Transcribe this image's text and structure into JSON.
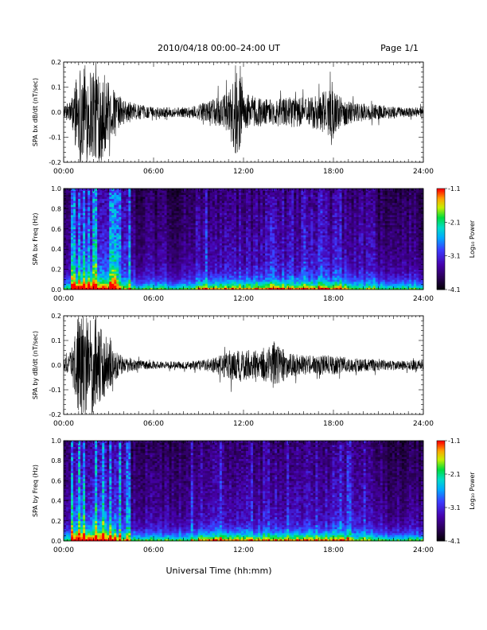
{
  "header": {
    "title": "2010/04/18   00:00–24:00 UT",
    "page": "Page 1/1"
  },
  "chart_data": [
    {
      "type": "line",
      "ylabel": "SPA bx dB/dt (nT/sec)",
      "x_range": [
        0,
        24
      ],
      "ylim": [
        -0.2,
        0.2
      ],
      "yticks": [
        "-0.2",
        "-0.1",
        "0.0",
        "0.1",
        "0.2"
      ],
      "xtick_labels": [
        "00:00",
        "06:00",
        "12:00",
        "18:00",
        "24:00"
      ],
      "envelope_x": [
        0,
        0.5,
        1.0,
        1.5,
        2.0,
        2.5,
        3.0,
        3.5,
        4.0,
        5.0,
        6.0,
        7.0,
        8.0,
        9.0,
        10.0,
        11.0,
        11.5,
        12.0,
        13.0,
        14.0,
        15.0,
        16.0,
        17.0,
        17.8,
        18.5,
        19.5,
        21.0,
        22.5,
        24.0
      ],
      "envelope_amp": [
        0.02,
        0.05,
        0.2,
        0.2,
        0.2,
        0.2,
        0.12,
        0.08,
        0.05,
        0.03,
        0.02,
        0.02,
        0.02,
        0.03,
        0.05,
        0.08,
        0.2,
        0.08,
        0.06,
        0.05,
        0.06,
        0.06,
        0.07,
        0.1,
        0.06,
        0.04,
        0.03,
        0.02,
        0.02
      ]
    },
    {
      "type": "heatmap",
      "ylabel": "SPA bx Freq (Hz)",
      "x_range": [
        0,
        24
      ],
      "ylim": [
        0,
        1.0
      ],
      "yticks": [
        "0.0",
        "0.2",
        "0.4",
        "0.6",
        "0.8",
        "1.0"
      ],
      "xtick_labels": [
        "00:00",
        "06:00",
        "12:00",
        "18:00",
        "24:00"
      ],
      "colorbar": {
        "label": "Log₁₀ Power",
        "ticks": [
          "-1.1",
          "-2.1",
          "-3.1",
          "-4.1"
        ],
        "range": [
          -4.1,
          -1.1
        ]
      }
    },
    {
      "type": "line",
      "ylabel": "SPA by dB/dt (nT/sec)",
      "x_range": [
        0,
        24
      ],
      "ylim": [
        -0.2,
        0.2
      ],
      "yticks": [
        "-0.2",
        "-0.1",
        "0.0",
        "0.1",
        "0.2"
      ],
      "xtick_labels": [
        "00:00",
        "06:00",
        "12:00",
        "18:00",
        "24:00"
      ],
      "envelope_x": [
        0,
        0.5,
        1.0,
        1.5,
        2.0,
        2.5,
        3.0,
        3.5,
        4.0,
        5.0,
        6.0,
        7.0,
        8.0,
        9.0,
        10.0,
        11.0,
        12.0,
        13.0,
        14.0,
        15.0,
        16.0,
        17.0,
        18.0,
        19.0,
        20.0,
        22.0,
        24.0
      ],
      "envelope_amp": [
        0.02,
        0.06,
        0.2,
        0.2,
        0.2,
        0.15,
        0.1,
        0.06,
        0.03,
        0.02,
        0.015,
        0.015,
        0.015,
        0.02,
        0.03,
        0.06,
        0.07,
        0.05,
        0.1,
        0.05,
        0.04,
        0.04,
        0.04,
        0.03,
        0.025,
        0.02,
        0.02
      ]
    },
    {
      "type": "heatmap",
      "ylabel": "SPA by Freq (Hz)",
      "x_range": [
        0,
        24
      ],
      "ylim": [
        0,
        1.0
      ],
      "yticks": [
        "0.0",
        "0.2",
        "0.4",
        "0.6",
        "0.8",
        "1.0"
      ],
      "xtick_labels": [
        "00:00",
        "06:00",
        "12:00",
        "18:00",
        "24:00"
      ],
      "colorbar": {
        "label": "Log₁₀ Power",
        "ticks": [
          "-1.1",
          "-2.1",
          "-3.1",
          "-4.1"
        ],
        "range": [
          -4.1,
          -1.1
        ]
      }
    }
  ],
  "xlabel": "Universal Time (hh:mm)"
}
